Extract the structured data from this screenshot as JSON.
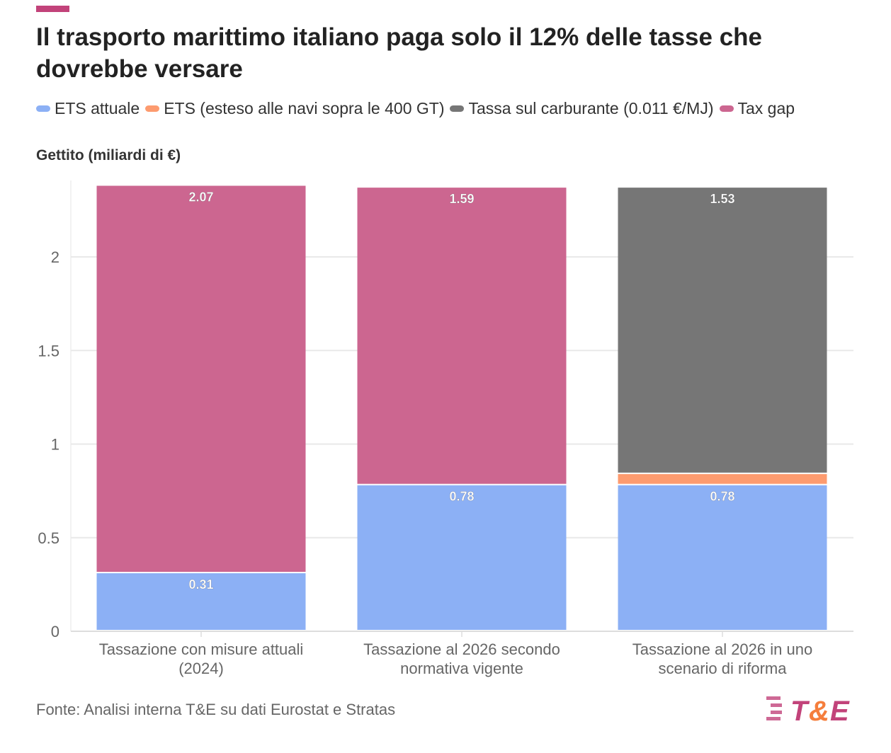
{
  "title": "Il trasporto marittimo italiano paga solo il 12% delle tasse che dovrebbe versare",
  "source": "Fonte: Analisi interna T&E su dati Eurostat e Stratas",
  "logo_text": "T&E",
  "chart_data": {
    "type": "bar",
    "stacked": true,
    "ylabel": "Gettito (miliardi di €)",
    "ylim": [
      0,
      2.4
    ],
    "yticks": [
      "0",
      "0.5",
      "1",
      "1.5",
      "2"
    ],
    "grid": true,
    "legend_position": "top",
    "categories": [
      [
        "Tassazione con misure attuali",
        "(2024)"
      ],
      [
        "Tassazione al 2026 secondo",
        "normativa vigente"
      ],
      [
        "Tassazione al 2026 in uno",
        "scenario di riforma"
      ]
    ],
    "series": [
      {
        "name": "ETS attuale",
        "color": "#8cb0f5",
        "values": [
          0.31,
          0.78,
          0.78
        ],
        "labels": [
          "0.31",
          "0.78",
          "0.78"
        ]
      },
      {
        "name": "ETS (esteso alle navi sopra le 400 GT)",
        "color": "#fd9b6f",
        "values": [
          0,
          0,
          0.06
        ],
        "labels": [
          "",
          "",
          ""
        ]
      },
      {
        "name": "Tassa sul carburante (0.011 €/MJ)",
        "color": "#767676",
        "values": [
          0,
          0,
          1.53
        ],
        "labels": [
          "",
          "",
          "1.53"
        ]
      },
      {
        "name": "Tax gap",
        "color": "#cc6690",
        "values": [
          2.07,
          1.59,
          0
        ],
        "labels": [
          "2.07",
          "1.59",
          ""
        ]
      }
    ]
  }
}
